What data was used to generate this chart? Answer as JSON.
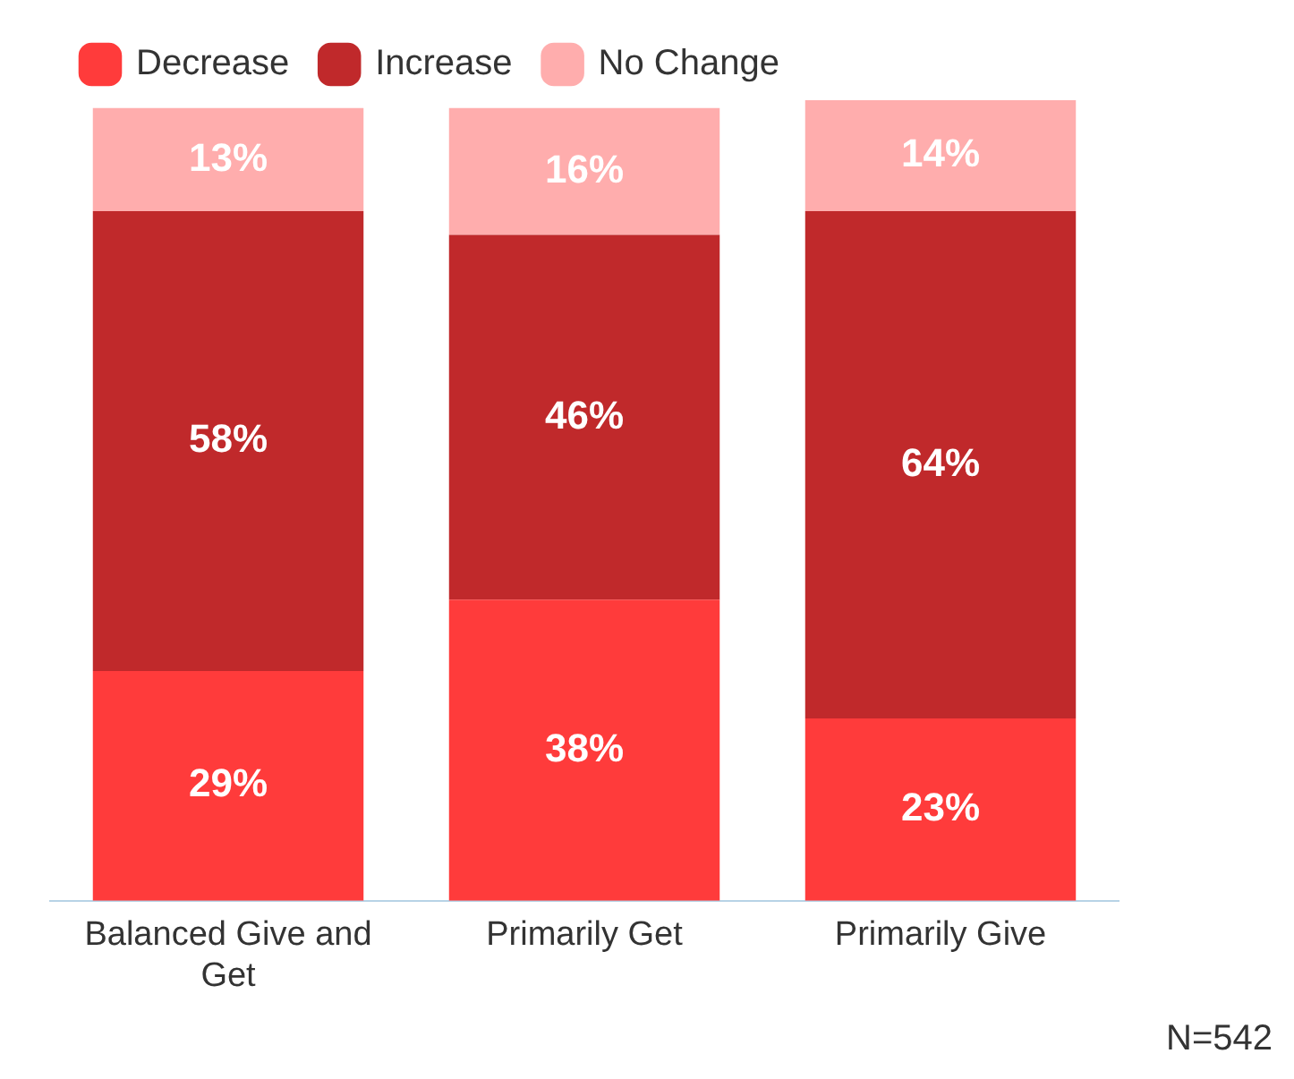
{
  "chart_data": {
    "type": "bar",
    "stacked": true,
    "categories": [
      "Balanced Give and Get",
      "Primarily Get",
      "Primarily Give"
    ],
    "series": [
      {
        "name": "Decrease",
        "color": "#ff3b3b",
        "values": [
          29,
          38,
          23
        ],
        "value_labels": [
          "29%",
          "38%",
          "23%"
        ]
      },
      {
        "name": "Increase",
        "color": "#c0292b",
        "values": [
          58,
          46,
          64
        ],
        "value_labels": [
          "58%",
          "46%",
          "64%"
        ]
      },
      {
        "name": "No Change",
        "color": "#ffadad",
        "values": [
          13,
          16,
          14
        ],
        "value_labels": [
          "13%",
          "16%",
          "14%"
        ]
      }
    ],
    "legend": "top left",
    "tick_labels": "x",
    "grid": false,
    "annotations": [
      "N=542"
    ]
  }
}
